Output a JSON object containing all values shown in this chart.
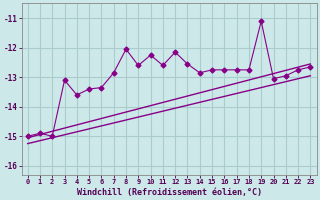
{
  "xlabel": "Windchill (Refroidissement éolien,°C)",
  "bg_color": "#cce8e8",
  "grid_color": "#aacccc",
  "line_color": "#880088",
  "xlim": [
    -0.5,
    23.5
  ],
  "ylim": [
    -16.3,
    -10.5
  ],
  "yticks": [
    -16,
    -15,
    -14,
    -13,
    -12,
    -11
  ],
  "xticks": [
    0,
    1,
    2,
    3,
    4,
    5,
    6,
    7,
    8,
    9,
    10,
    11,
    12,
    13,
    14,
    15,
    16,
    17,
    18,
    19,
    20,
    21,
    22,
    23
  ],
  "data_x": [
    0,
    1,
    2,
    3,
    4,
    5,
    6,
    7,
    8,
    9,
    10,
    11,
    12,
    13,
    14,
    15,
    16,
    17,
    18,
    19,
    20,
    21,
    22,
    23
  ],
  "data_y": [
    -15.0,
    -14.9,
    -15.0,
    -13.1,
    -13.6,
    -13.4,
    -13.35,
    -12.85,
    -12.05,
    -12.6,
    -12.25,
    -12.6,
    -12.15,
    -12.55,
    -12.85,
    -12.75,
    -12.75,
    -12.75,
    -12.75,
    -11.1,
    -13.05,
    -12.95,
    -12.75,
    -12.65
  ],
  "line1_x": [
    0,
    23
  ],
  "line1_y": [
    -15.05,
    -12.55
  ],
  "line2_x": [
    0,
    23
  ],
  "line2_y": [
    -15.25,
    -12.95
  ]
}
